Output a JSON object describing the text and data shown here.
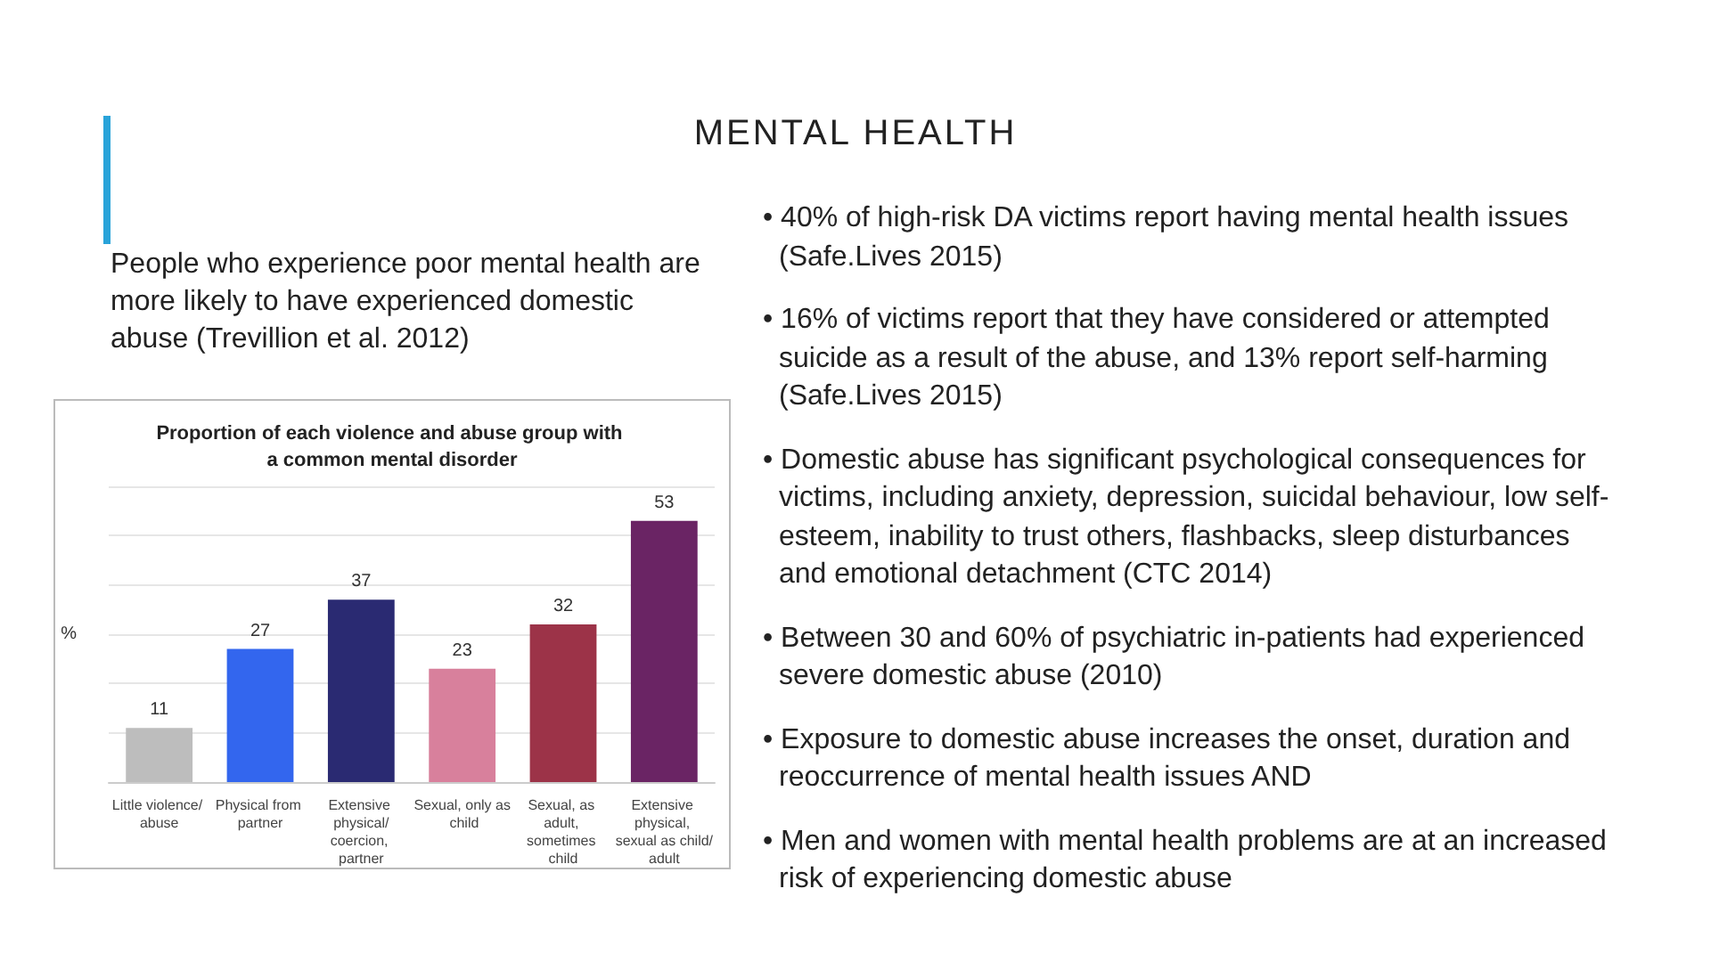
{
  "chart_data": {
    "type": "bar",
    "title": "Proportion of each violence and abuse group with a common mental disorder",
    "ylabel": "%",
    "categories": [
      "Little violence/ abuse",
      "Physical from partner",
      "Extensive physical/coercion, partner",
      "Sexual, only as child",
      "Sexual, as adult, sometimes child",
      "Extensive physical, sexual as child/adult"
    ],
    "values": [
      11,
      27,
      37,
      23,
      32,
      53
    ],
    "colors": [
      "#bdbdbd",
      "#3366ee",
      "#2a2a72",
      "#d8809c",
      "#9c3348",
      "#6a2464"
    ],
    "ylim": [
      0,
      60
    ],
    "yticks": [
      {
        "value": 0,
        "label": null
      },
      {
        "value": 10,
        "label": null
      },
      {
        "value": 20,
        "label": null
      },
      {
        "value": 30,
        "label": null
      },
      {
        "value": 40,
        "label": null
      },
      {
        "value": 50,
        "label": null
      },
      {
        "value": 60,
        "label": null
      }
    ],
    "grid": "y",
    "data_labels": true,
    "tick_labels": "x",
    "annotations": [
      "MENTAL HEALTH",
      "People who experience poor mental health are more likely to have experienced domestic abuse (Trevillion et al. 2012)",
      "• 40% of high-risk  DA victims report having mental health issues (Safe.Lives 2015)",
      "• 16% of victims report that they have considered or attempted suicide as a result of the abuse, and 13% report self-harming (Safe.Lives 2015)",
      "• Domestic abuse has significant psychological consequences for victims, including anxiety, depression, suicidal behaviour, low self-esteem, inability to trust others, flashbacks, sleep disturbances and emotional detachment (CTC 2014)",
      "• Between 30 and 60% of psychiatric in-patients had experienced severe domestic abuse (2010)",
      "• Exposure to domestic abuse increases the onset, duration and reoccurrence of mental health issues AND",
      "• Men and women with mental health problems are at an increased risk of experiencing domestic abuse"
    ]
  }
}
